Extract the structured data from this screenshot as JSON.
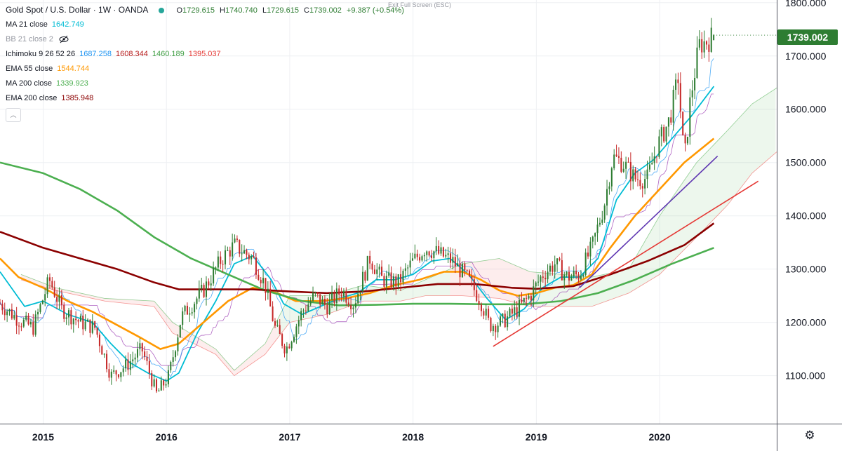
{
  "legend": {
    "title": "Gold Spot / U.S. Dollar · 1W · OANDA",
    "open_label": "O",
    "open": "1729.615",
    "high_label": "H",
    "high": "1740.740",
    "low_label": "L",
    "low": "1729.615",
    "close_label": "C",
    "close": "1739.002",
    "change": "+9.387 (+0.54%)",
    "rows": [
      {
        "name": "MA 21 close",
        "values": [
          "1642.749"
        ],
        "colors": [
          "#00bcd4"
        ],
        "hidden": false
      },
      {
        "name": "BB 21 close 2",
        "values": [],
        "colors": [],
        "hidden": true
      },
      {
        "name": "Ichimoku 9 26 52 26",
        "values": [
          "1687.258",
          "1608.344",
          "1460.189",
          "1395.037"
        ],
        "colors": [
          "#2196f3",
          "#b71c1c",
          "#43a047",
          "#e53935"
        ],
        "hidden": false
      },
      {
        "name": "EMA 55 close",
        "values": [
          "1544.744"
        ],
        "colors": [
          "#ff9800"
        ],
        "hidden": false
      },
      {
        "name": "MA 200 close",
        "values": [
          "1339.923"
        ],
        "colors": [
          "#4caf50"
        ],
        "hidden": false
      },
      {
        "name": "EMA 200 close",
        "values": [
          "1385.948"
        ],
        "colors": [
          "#8b0000"
        ],
        "hidden": false
      }
    ]
  },
  "exit_fullscreen": "Exit Full Screen (ESC)",
  "price_badge": "1739.002",
  "colors": {
    "up": "#2e7d32",
    "down": "#c62828",
    "ma21": "#00bcd4",
    "ema55": "#ff9800",
    "ma200": "#4caf50",
    "ema200": "#8b0000",
    "tenkan": "#2196f3",
    "kijun": "#8e24aa",
    "cloud_bull": "#4caf50",
    "cloud_bear": "#ef5350",
    "trend_red": "#e53935",
    "trend_purple": "#5e35b1"
  },
  "chart_data": {
    "type": "candlestick",
    "title": "Gold Spot / U.S. Dollar · 1W · OANDA",
    "x_axis": {
      "ticks": [
        2015,
        2016,
        2017,
        2018,
        2019,
        2020
      ],
      "range": [
        2014.65,
        2020.95
      ]
    },
    "y_axis": {
      "ticks": [
        1100,
        1200,
        1300,
        1400,
        1500,
        1600,
        1700,
        1800
      ],
      "tick_labels": [
        "1100.000",
        "1200.000",
        "1300.000",
        "1400.000",
        "1500.000",
        "1600.000",
        "1700.000",
        "1800.000"
      ],
      "range": [
        1010,
        1805
      ]
    },
    "grid": true,
    "price_path": [
      [
        2014.65,
        1235
      ],
      [
        2014.8,
        1205
      ],
      [
        2014.92,
        1190
      ],
      [
        2015.05,
        1280
      ],
      [
        2015.15,
        1225
      ],
      [
        2015.3,
        1200
      ],
      [
        2015.42,
        1190
      ],
      [
        2015.55,
        1100
      ],
      [
        2015.68,
        1120
      ],
      [
        2015.8,
        1150
      ],
      [
        2015.92,
        1065
      ],
      [
        2016.02,
        1100
      ],
      [
        2016.12,
        1210
      ],
      [
        2016.3,
        1260
      ],
      [
        2016.45,
        1320
      ],
      [
        2016.55,
        1345
      ],
      [
        2016.7,
        1320
      ],
      [
        2016.8,
        1270
      ],
      [
        2016.88,
        1190
      ],
      [
        2016.97,
        1150
      ],
      [
        2017.1,
        1220
      ],
      [
        2017.2,
        1250
      ],
      [
        2017.3,
        1230
      ],
      [
        2017.42,
        1260
      ],
      [
        2017.52,
        1235
      ],
      [
        2017.65,
        1320
      ],
      [
        2017.75,
        1280
      ],
      [
        2017.88,
        1275
      ],
      [
        2018.0,
        1315
      ],
      [
        2018.1,
        1340
      ],
      [
        2018.2,
        1330
      ],
      [
        2018.32,
        1315
      ],
      [
        2018.45,
        1280
      ],
      [
        2018.55,
        1240
      ],
      [
        2018.62,
        1195
      ],
      [
        2018.72,
        1200
      ],
      [
        2018.85,
        1225
      ],
      [
        2018.95,
        1250
      ],
      [
        2019.05,
        1290
      ],
      [
        2019.15,
        1310
      ],
      [
        2019.25,
        1285
      ],
      [
        2019.35,
        1290
      ],
      [
        2019.45,
        1340
      ],
      [
        2019.55,
        1420
      ],
      [
        2019.62,
        1510
      ],
      [
        2019.7,
        1500
      ],
      [
        2019.8,
        1470
      ],
      [
        2019.9,
        1470
      ],
      [
        2019.98,
        1530
      ],
      [
        2020.08,
        1580
      ],
      [
        2020.15,
        1660
      ],
      [
        2020.2,
        1500
      ],
      [
        2020.25,
        1620
      ],
      [
        2020.32,
        1720
      ],
      [
        2020.4,
        1730
      ],
      [
        2020.44,
        1739
      ]
    ],
    "series": [
      {
        "name": "MA 21 close",
        "points": [
          [
            2014.65,
            1295
          ],
          [
            2014.85,
            1230
          ],
          [
            2015.0,
            1240
          ],
          [
            2015.2,
            1215
          ],
          [
            2015.4,
            1200
          ],
          [
            2015.55,
            1160
          ],
          [
            2015.7,
            1125
          ],
          [
            2015.85,
            1105
          ],
          [
            2016.0,
            1090
          ],
          [
            2016.1,
            1105
          ],
          [
            2016.25,
            1180
          ],
          [
            2016.4,
            1240
          ],
          [
            2016.55,
            1310
          ],
          [
            2016.7,
            1325
          ],
          [
            2016.85,
            1280
          ],
          [
            2016.95,
            1235
          ],
          [
            2017.1,
            1215
          ],
          [
            2017.25,
            1230
          ],
          [
            2017.4,
            1245
          ],
          [
            2017.55,
            1255
          ],
          [
            2017.7,
            1280
          ],
          [
            2017.85,
            1280
          ],
          [
            2018.0,
            1290
          ],
          [
            2018.15,
            1315
          ],
          [
            2018.3,
            1320
          ],
          [
            2018.45,
            1290
          ],
          [
            2018.6,
            1245
          ],
          [
            2018.75,
            1205
          ],
          [
            2018.9,
            1225
          ],
          [
            2019.05,
            1265
          ],
          [
            2019.2,
            1285
          ],
          [
            2019.35,
            1285
          ],
          [
            2019.5,
            1320
          ],
          [
            2019.65,
            1430
          ],
          [
            2019.8,
            1480
          ],
          [
            2019.95,
            1505
          ],
          [
            2020.1,
            1545
          ],
          [
            2020.25,
            1585
          ],
          [
            2020.44,
            1643
          ]
        ]
      },
      {
        "name": "EMA 55 close",
        "points": [
          [
            2014.65,
            1320
          ],
          [
            2014.8,
            1285
          ],
          [
            2015.0,
            1265
          ],
          [
            2015.2,
            1240
          ],
          [
            2015.4,
            1220
          ],
          [
            2015.6,
            1195
          ],
          [
            2015.8,
            1170
          ],
          [
            2015.95,
            1150
          ],
          [
            2016.1,
            1160
          ],
          [
            2016.3,
            1200
          ],
          [
            2016.5,
            1240
          ],
          [
            2016.7,
            1265
          ],
          [
            2016.9,
            1255
          ],
          [
            2017.05,
            1240
          ],
          [
            2017.25,
            1240
          ],
          [
            2017.45,
            1245
          ],
          [
            2017.65,
            1255
          ],
          [
            2017.85,
            1270
          ],
          [
            2018.05,
            1280
          ],
          [
            2018.25,
            1295
          ],
          [
            2018.4,
            1295
          ],
          [
            2018.55,
            1280
          ],
          [
            2018.7,
            1260
          ],
          [
            2018.85,
            1250
          ],
          [
            2019.0,
            1255
          ],
          [
            2019.15,
            1265
          ],
          [
            2019.3,
            1270
          ],
          [
            2019.45,
            1290
          ],
          [
            2019.6,
            1340
          ],
          [
            2019.8,
            1400
          ],
          [
            2020.0,
            1450
          ],
          [
            2020.2,
            1500
          ],
          [
            2020.44,
            1545
          ]
        ]
      },
      {
        "name": "MA 200 close",
        "points": [
          [
            2014.65,
            1500
          ],
          [
            2015.0,
            1480
          ],
          [
            2015.3,
            1450
          ],
          [
            2015.6,
            1410
          ],
          [
            2015.9,
            1360
          ],
          [
            2016.2,
            1320
          ],
          [
            2016.5,
            1290
          ],
          [
            2016.8,
            1260
          ],
          [
            2017.1,
            1240
          ],
          [
            2017.4,
            1232
          ],
          [
            2017.7,
            1233
          ],
          [
            2018.0,
            1235
          ],
          [
            2018.3,
            1235
          ],
          [
            2018.6,
            1234
          ],
          [
            2018.9,
            1234
          ],
          [
            2019.2,
            1240
          ],
          [
            2019.5,
            1255
          ],
          [
            2019.8,
            1280
          ],
          [
            2020.1,
            1310
          ],
          [
            2020.44,
            1340
          ]
        ]
      },
      {
        "name": "EMA 200 close",
        "points": [
          [
            2014.65,
            1370
          ],
          [
            2015.0,
            1340
          ],
          [
            2015.3,
            1320
          ],
          [
            2015.6,
            1300
          ],
          [
            2015.9,
            1275
          ],
          [
            2016.1,
            1262
          ],
          [
            2016.4,
            1262
          ],
          [
            2016.7,
            1262
          ],
          [
            2017.0,
            1258
          ],
          [
            2017.3,
            1255
          ],
          [
            2017.6,
            1258
          ],
          [
            2017.9,
            1265
          ],
          [
            2018.2,
            1272
          ],
          [
            2018.5,
            1272
          ],
          [
            2018.8,
            1265
          ],
          [
            2019.0,
            1263
          ],
          [
            2019.3,
            1268
          ],
          [
            2019.6,
            1290
          ],
          [
            2019.9,
            1315
          ],
          [
            2020.2,
            1345
          ],
          [
            2020.44,
            1386
          ]
        ]
      }
    ],
    "cloud": {
      "upper": [
        [
          2014.82,
          1290
        ],
        [
          2015.1,
          1265
        ],
        [
          2015.5,
          1245
        ],
        [
          2015.9,
          1240
        ],
        [
          2016.05,
          1200
        ],
        [
          2016.4,
          1150
        ],
        [
          2016.55,
          1110
        ],
        [
          2016.8,
          1160
        ],
        [
          2017.0,
          1250
        ],
        [
          2017.3,
          1250
        ],
        [
          2017.6,
          1270
        ],
        [
          2017.9,
          1260
        ],
        [
          2018.1,
          1280
        ],
        [
          2018.4,
          1310
        ],
        [
          2018.7,
          1320
        ],
        [
          2018.95,
          1295
        ],
        [
          2019.2,
          1290
        ],
        [
          2019.45,
          1285
        ],
        [
          2019.75,
          1300
        ],
        [
          2020.0,
          1400
        ],
        [
          2020.3,
          1500
        ],
        [
          2020.55,
          1560
        ],
        [
          2020.75,
          1610
        ],
        [
          2020.95,
          1640
        ]
      ],
      "lower": [
        [
          2014.82,
          1280
        ],
        [
          2015.1,
          1260
        ],
        [
          2015.5,
          1240
        ],
        [
          2015.9,
          1230
        ],
        [
          2016.05,
          1180
        ],
        [
          2016.4,
          1140
        ],
        [
          2016.55,
          1100
        ],
        [
          2016.8,
          1140
        ],
        [
          2017.0,
          1200
        ],
        [
          2017.3,
          1215
        ],
        [
          2017.6,
          1240
        ],
        [
          2017.9,
          1240
        ],
        [
          2018.1,
          1250
        ],
        [
          2018.4,
          1250
        ],
        [
          2018.7,
          1245
        ],
        [
          2018.95,
          1230
        ],
        [
          2019.2,
          1230
        ],
        [
          2019.45,
          1230
        ],
        [
          2019.75,
          1255
        ],
        [
          2020.0,
          1290
        ],
        [
          2020.3,
          1360
        ],
        [
          2020.55,
          1420
        ],
        [
          2020.75,
          1480
        ],
        [
          2020.95,
          1520
        ]
      ]
    },
    "trendlines": [
      {
        "color": "trend_red",
        "from": [
          2018.65,
          1155
        ],
        "to": [
          2020.8,
          1465
        ]
      },
      {
        "color": "trend_purple",
        "from": [
          2019.35,
          1265
        ],
        "to": [
          2020.47,
          1512
        ]
      }
    ]
  }
}
